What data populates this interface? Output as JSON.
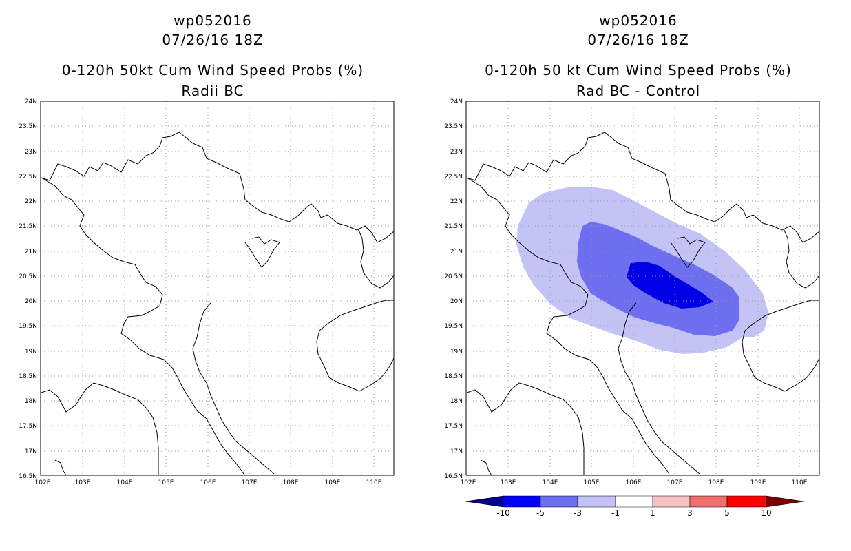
{
  "left_panel": {
    "storm_id": "wp052016",
    "datetime": "07/26/16 18Z",
    "product": "0-120h 50kt Cum Wind Speed Probs (%)",
    "subtitle": "Radii BC"
  },
  "right_panel": {
    "storm_id": "wp052016",
    "datetime": "07/26/16 18Z",
    "product": "0-120h 50 kt Cum Wind Speed Probs (%)",
    "subtitle": "Rad BC - Control"
  },
  "lat_ticks": [
    "24N",
    "23.5N",
    "23N",
    "22.5N",
    "22N",
    "21.5N",
    "21N",
    "20.5N",
    "20N",
    "19.5N",
    "19N",
    "18.5N",
    "18N",
    "17.5N",
    "17N",
    "16.5N"
  ],
  "lon_ticks": [
    "102E",
    "103E",
    "104E",
    "105E",
    "106E",
    "107E",
    "108E",
    "109E",
    "110E"
  ],
  "colorbar": {
    "labels": [
      "-10",
      "-5",
      "-3",
      "-1",
      "1",
      "3",
      "5",
      "10"
    ],
    "colors": [
      "#00008b",
      "#0000ff",
      "#6e6ef0",
      "#c3c3f5",
      "#ffffff",
      "#f5c3c3",
      "#f06e6e",
      "#ff0000",
      "#780000"
    ]
  },
  "shading_colors": {
    "light": "#c3c3f5",
    "medium": "#6e6ef0",
    "dark": "#0000e6"
  }
}
